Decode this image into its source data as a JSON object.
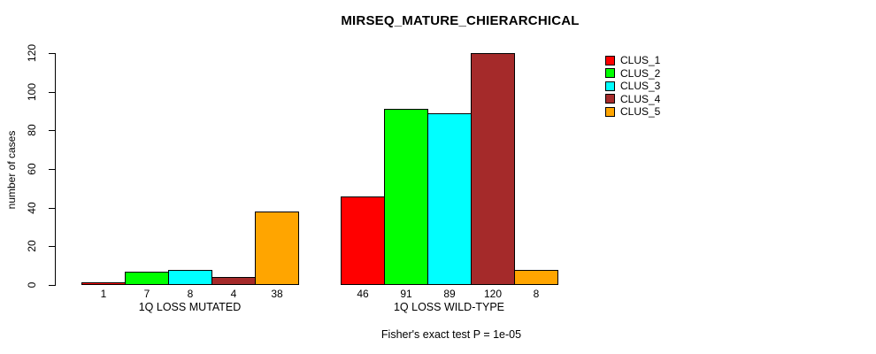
{
  "chart_data": {
    "type": "bar",
    "title": "MIRSEQ_MATURE_CHIERARCHICAL",
    "xlabel": "",
    "ylabel": "number of cases",
    "ylim": [
      0,
      120
    ],
    "yticks": [
      0,
      20,
      40,
      60,
      80,
      100,
      120
    ],
    "grid": false,
    "legend_position": "right",
    "groups": [
      "1Q LOSS MUTATED",
      "1Q LOSS WILD-TYPE"
    ],
    "series": [
      {
        "name": "CLUS_1",
        "color": "#FF0000",
        "values": [
          1,
          46
        ]
      },
      {
        "name": "CLUS_2",
        "color": "#00FF00",
        "values": [
          7,
          91
        ]
      },
      {
        "name": "CLUS_3",
        "color": "#00FFFF",
        "values": [
          8,
          89
        ]
      },
      {
        "name": "CLUS_4",
        "color": "#A52A2A",
        "values": [
          4,
          120
        ]
      },
      {
        "name": "CLUS_5",
        "color": "#FFA500",
        "values": [
          38,
          8
        ]
      }
    ],
    "bar_value_labels": {
      "1Q LOSS MUTATED": [
        1,
        7,
        8,
        4,
        38
      ],
      "1Q LOSS WILD-TYPE": [
        46,
        91,
        89,
        120,
        8
      ]
    },
    "annotation": "Fisher's exact test P = 1e-05"
  }
}
